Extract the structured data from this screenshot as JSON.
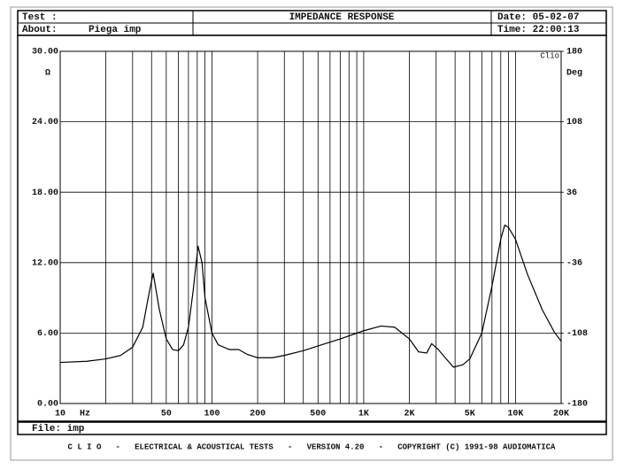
{
  "header": {
    "test_label": "Test :",
    "date": "Date: 05-02-07",
    "about_label": "About:",
    "about": "Piega imp",
    "time": "Time: 22:00:13"
  },
  "footer": {
    "file": "File: imp",
    "banner": "C L I O   -   ELECTRICAL & ACOUSTICAL TESTS   -   VERSION 4.20   -   COPYRIGHT (C) 1991-98 AUDIOMATICA"
  },
  "chart_data": {
    "type": "line",
    "title": "IMPEDANCE RESPONSE",
    "x_unit": "Hz",
    "y_unit": "Ω",
    "y2_unit": "Deg",
    "watermark": "Clio",
    "x": [
      10,
      15,
      20,
      25,
      30,
      35,
      38,
      41,
      45,
      50,
      55,
      60,
      65,
      70,
      75,
      81,
      86,
      90,
      100,
      110,
      130,
      150,
      170,
      200,
      250,
      300,
      400,
      500,
      700,
      1000,
      1300,
      1600,
      2000,
      2300,
      2600,
      2800,
      3100,
      3500,
      3900,
      4500,
      5000,
      6000,
      7000,
      8000,
      8500,
      9000,
      10000,
      12000,
      15000,
      18000,
      20000
    ],
    "values": [
      3.5,
      3.6,
      3.8,
      4.1,
      4.8,
      6.5,
      9,
      11.1,
      8,
      5.5,
      4.6,
      4.5,
      5,
      6.5,
      9.5,
      13.4,
      12,
      9,
      6,
      5,
      4.6,
      4.6,
      4.2,
      3.9,
      3.9,
      4.1,
      4.5,
      4.9,
      5.5,
      6.2,
      6.6,
      6.5,
      5.5,
      4.4,
      4.3,
      5.1,
      4.6,
      3.8,
      3.1,
      3.3,
      3.8,
      6,
      10,
      14,
      15.2,
      15,
      14,
      11,
      8,
      6.1,
      5.3
    ],
    "color": "#000000",
    "xscale": "log",
    "xlim": [
      10,
      20000
    ],
    "xticks": [
      10,
      50,
      100,
      200,
      500,
      {
        "value": 1000,
        "label": "1K"
      },
      {
        "value": 2000,
        "label": "2K"
      },
      {
        "value": 5000,
        "label": "5K"
      },
      {
        "value": 10000,
        "label": "10K"
      },
      {
        "value": 20000,
        "label": "20K"
      }
    ],
    "xminor": [
      20,
      30,
      40,
      60,
      70,
      80,
      90,
      300,
      400,
      600,
      700,
      800,
      900,
      3000,
      4000,
      6000,
      7000,
      8000,
      9000
    ],
    "ylim": [
      0,
      30
    ],
    "yticks": [
      {
        "value": 0,
        "label": "0.00"
      },
      {
        "value": 6,
        "label": "6.00"
      },
      {
        "value": 12,
        "label": "12.00"
      },
      {
        "value": 18,
        "label": "18.00"
      },
      {
        "value": 24,
        "label": "24.00"
      },
      {
        "value": 30,
        "label": "30.00"
      }
    ],
    "y2lim": [
      -180,
      180
    ],
    "y2ticks": [
      -180,
      -108,
      -36,
      36,
      108,
      180
    ],
    "grid": true
  }
}
